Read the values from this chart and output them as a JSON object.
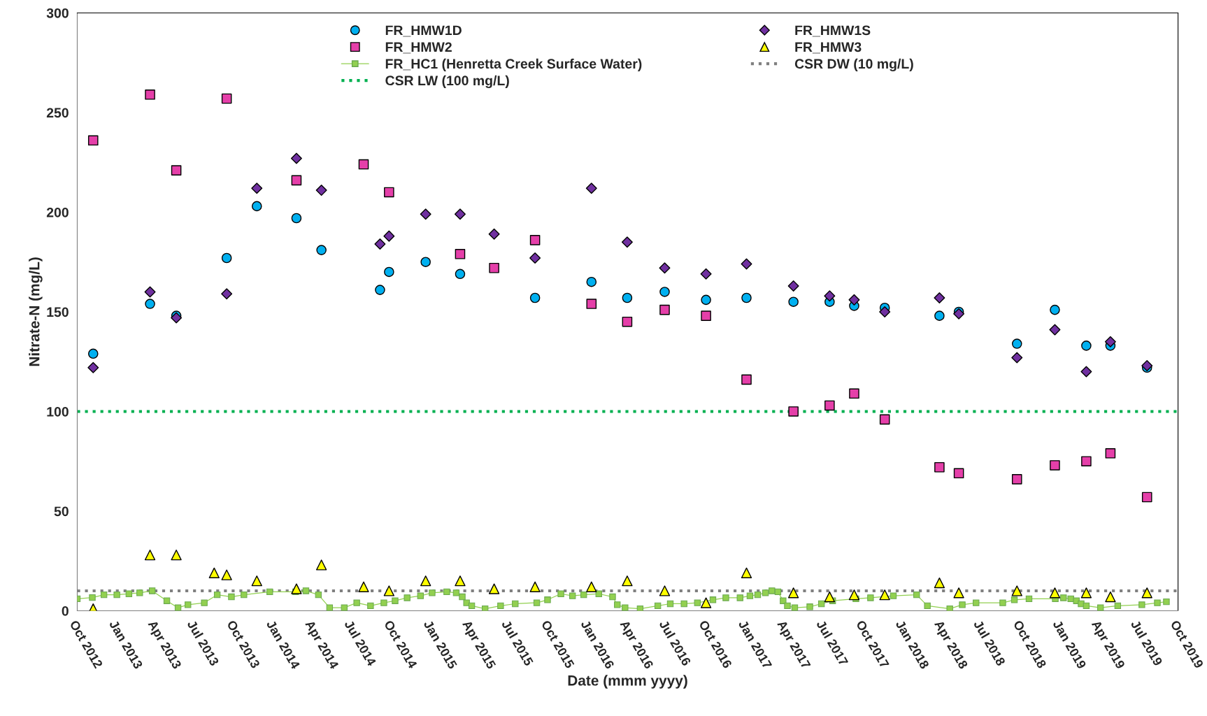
{
  "chart_data": {
    "type": "scatter",
    "xlabel": "Date (mmm yyyy)",
    "ylabel": "Nitrate-N (mg/L)",
    "xlim": [
      "2012-10-01",
      "2019-10-01"
    ],
    "xticks": [
      {
        "value": "2012-10-01",
        "label": "Oct 2012"
      },
      {
        "value": "2013-01-01",
        "label": "Jan 2013"
      },
      {
        "value": "2013-04-01",
        "label": "Apr 2013"
      },
      {
        "value": "2013-07-01",
        "label": "Jul 2013"
      },
      {
        "value": "2013-10-01",
        "label": "Oct 2013"
      },
      {
        "value": "2014-01-01",
        "label": "Jan 2014"
      },
      {
        "value": "2014-04-01",
        "label": "Apr 2014"
      },
      {
        "value": "2014-07-01",
        "label": "Jul 2014"
      },
      {
        "value": "2014-10-01",
        "label": "Oct 2014"
      },
      {
        "value": "2015-01-01",
        "label": "Jan 2015"
      },
      {
        "value": "2015-04-01",
        "label": "Apr 2015"
      },
      {
        "value": "2015-07-01",
        "label": "Jul 2015"
      },
      {
        "value": "2015-10-01",
        "label": "Oct 2015"
      },
      {
        "value": "2016-01-01",
        "label": "Jan 2016"
      },
      {
        "value": "2016-04-01",
        "label": "Apr 2016"
      },
      {
        "value": "2016-07-01",
        "label": "Jul 2016"
      },
      {
        "value": "2016-10-01",
        "label": "Oct 2016"
      },
      {
        "value": "2017-01-01",
        "label": "Jan 2017"
      },
      {
        "value": "2017-04-01",
        "label": "Apr 2017"
      },
      {
        "value": "2017-07-01",
        "label": "Jul 2017"
      },
      {
        "value": "2017-10-01",
        "label": "Oct 2017"
      },
      {
        "value": "2018-01-01",
        "label": "Jan 2018"
      },
      {
        "value": "2018-04-01",
        "label": "Apr 2018"
      },
      {
        "value": "2018-07-01",
        "label": "Jul 2018"
      },
      {
        "value": "2018-10-01",
        "label": "Oct 2018"
      },
      {
        "value": "2019-01-01",
        "label": "Jan 2019"
      },
      {
        "value": "2019-04-01",
        "label": "Apr 2019"
      },
      {
        "value": "2019-07-01",
        "label": "Jul 2019"
      },
      {
        "value": "2019-10-01",
        "label": "Oct 2019"
      }
    ],
    "ylim": [
      0,
      300
    ],
    "yticks": [
      0,
      50,
      100,
      150,
      200,
      250,
      300
    ],
    "grid": false,
    "legend": "top",
    "series": [
      {
        "name": "FR_HMW1D",
        "marker": "circle",
        "color": "#00b0f0",
        "x": [
          "2012-11-07",
          "2013-03-19",
          "2013-05-19",
          "2013-09-13",
          "2013-11-22",
          "2014-02-22",
          "2014-04-21",
          "2014-09-04",
          "2014-09-25",
          "2014-12-19",
          "2015-03-09",
          "2015-08-30",
          "2016-01-08",
          "2016-03-31",
          "2016-06-26",
          "2016-09-30",
          "2017-01-02",
          "2017-04-21",
          "2017-07-14",
          "2017-09-09",
          "2017-11-19",
          "2018-03-26",
          "2018-05-10",
          "2018-09-22",
          "2018-12-19",
          "2019-03-02",
          "2019-04-27",
          "2019-07-21"
        ],
        "values": [
          129,
          154,
          148,
          177,
          203,
          197,
          181,
          161,
          170,
          175,
          169,
          157,
          165,
          157,
          160,
          156,
          157,
          155,
          155,
          153,
          152,
          148,
          150,
          134,
          151,
          133,
          133,
          122
        ]
      },
      {
        "name": "FR_HMW1S",
        "marker": "diamond",
        "color": "#7030a0",
        "x": [
          "2012-11-07",
          "2013-03-19",
          "2013-05-19",
          "2013-09-13",
          "2013-11-22",
          "2014-02-22",
          "2014-04-21",
          "2014-09-04",
          "2014-09-25",
          "2014-12-19",
          "2015-03-09",
          "2015-05-27",
          "2015-08-30",
          "2016-01-08",
          "2016-03-31",
          "2016-06-26",
          "2016-09-30",
          "2017-01-02",
          "2017-04-21",
          "2017-07-14",
          "2017-09-09",
          "2017-11-19",
          "2018-03-26",
          "2018-05-10",
          "2018-09-22",
          "2018-12-19",
          "2019-03-02",
          "2019-04-27",
          "2019-07-21"
        ],
        "values": [
          122,
          160,
          147,
          159,
          212,
          227,
          211,
          184,
          188,
          199,
          199,
          189,
          177,
          212,
          185,
          172,
          169,
          174,
          163,
          158,
          156,
          150,
          157,
          149,
          127,
          141,
          120,
          135,
          123
        ]
      },
      {
        "name": "FR_HMW2",
        "marker": "square",
        "color": "#e53fa9",
        "x": [
          "2012-11-07",
          "2013-03-19",
          "2013-05-19",
          "2013-09-13",
          "2014-02-22",
          "2014-07-28",
          "2014-09-25",
          "2015-03-09",
          "2015-05-27",
          "2015-08-30",
          "2016-01-08",
          "2016-03-31",
          "2016-06-26",
          "2016-09-30",
          "2017-01-02",
          "2017-04-21",
          "2017-07-14",
          "2017-09-09",
          "2017-11-19",
          "2018-03-26",
          "2018-05-10",
          "2018-09-22",
          "2018-12-19",
          "2019-03-02",
          "2019-04-27",
          "2019-07-21"
        ],
        "values": [
          236,
          259,
          221,
          257,
          216,
          224,
          210,
          179,
          172,
          186,
          154,
          145,
          151,
          148,
          116,
          100,
          103,
          109,
          96,
          72,
          69,
          66,
          73,
          75,
          79,
          57
        ]
      },
      {
        "name": "FR_HMW3",
        "marker": "triangle",
        "color": "#ffff00",
        "x": [
          "2012-11-07",
          "2013-03-19",
          "2013-05-19",
          "2013-08-15",
          "2013-09-13",
          "2013-11-22",
          "2014-02-22",
          "2014-04-21",
          "2014-07-28",
          "2014-09-25",
          "2014-12-19",
          "2015-03-09",
          "2015-05-27",
          "2015-08-30",
          "2016-01-08",
          "2016-03-31",
          "2016-06-26",
          "2016-09-30",
          "2017-01-02",
          "2017-04-21",
          "2017-07-14",
          "2017-09-09",
          "2017-11-19",
          "2018-03-26",
          "2018-05-10",
          "2018-09-22",
          "2018-12-19",
          "2019-03-02",
          "2019-04-27",
          "2019-07-21"
        ],
        "values": [
          1,
          28,
          28,
          19,
          18,
          15,
          11,
          23,
          12,
          10,
          15,
          15,
          11,
          12,
          12,
          15,
          10,
          4,
          19,
          9,
          7,
          8,
          8,
          14,
          9,
          10,
          9,
          9,
          7,
          9
        ]
      },
      {
        "name": "FR_HC1 (Henretta Creek Surface Water)",
        "type": "line",
        "marker": "square",
        "line_style": "solid",
        "color": "#92d050",
        "x": [
          "2012-10-01",
          "2012-11-05",
          "2012-12-02",
          "2013-01-01",
          "2013-01-29",
          "2013-02-23",
          "2013-03-24",
          "2013-04-27",
          "2013-05-23",
          "2013-06-15",
          "2013-07-23",
          "2013-08-22",
          "2013-09-24",
          "2013-10-23",
          "2013-12-22",
          "2014-02-20",
          "2014-03-16",
          "2014-04-14",
          "2014-05-10",
          "2014-06-13",
          "2014-07-12",
          "2014-08-13",
          "2014-09-13",
          "2014-10-09",
          "2014-11-06",
          "2014-12-07",
          "2015-01-03",
          "2015-02-06",
          "2015-02-28",
          "2015-03-14",
          "2015-03-24",
          "2015-04-05",
          "2015-05-06",
          "2015-06-11",
          "2015-07-15",
          "2015-09-03",
          "2015-09-28",
          "2015-10-29",
          "2015-11-25",
          "2015-12-21",
          "2016-01-25",
          "2016-02-26",
          "2016-03-08",
          "2016-03-26",
          "2016-04-30",
          "2016-06-10",
          "2016-07-09",
          "2016-08-10",
          "2016-09-10",
          "2016-10-16",
          "2016-11-15",
          "2016-12-18",
          "2017-01-10",
          "2017-01-28",
          "2017-02-15",
          "2017-03-02",
          "2017-03-16",
          "2017-03-28",
          "2017-04-07",
          "2017-04-24",
          "2017-05-29",
          "2017-06-25",
          "2017-07-21",
          "2017-09-13",
          "2017-10-17",
          "2017-12-09",
          "2018-02-01",
          "2018-02-26",
          "2018-04-19",
          "2018-05-18",
          "2018-06-19",
          "2018-08-20",
          "2018-09-16",
          "2018-10-20",
          "2018-12-20",
          "2019-01-08",
          "2019-01-25",
          "2019-02-07",
          "2019-02-18",
          "2019-03-02",
          "2019-04-04",
          "2019-05-14",
          "2019-07-09",
          "2019-08-14",
          "2019-09-04"
        ],
        "values": [
          6,
          6.6,
          8,
          8,
          8.5,
          9,
          10,
          5,
          1.5,
          3,
          4,
          8,
          7,
          8,
          9.5,
          9.5,
          10,
          8,
          1.5,
          1.5,
          4,
          2.5,
          4,
          5,
          6.5,
          7.5,
          9,
          9.5,
          9,
          7,
          4,
          2.5,
          1,
          2.5,
          3.5,
          4,
          5.5,
          8.5,
          7.5,
          8,
          8.5,
          7,
          3,
          1.5,
          1,
          2.5,
          3.5,
          3.5,
          4,
          5.5,
          6.5,
          6.5,
          7.5,
          8,
          9,
          10,
          9.5,
          5,
          2.5,
          1.5,
          2,
          3.5,
          5,
          6,
          6.5,
          7.5,
          8,
          2.5,
          1,
          3,
          4,
          4,
          5.5,
          6,
          6,
          6.5,
          6,
          5,
          3.5,
          2.5,
          1.5,
          2.5,
          3,
          4,
          4.5
        ]
      }
    ],
    "ref_lines": [
      {
        "axis": "y",
        "value": 10,
        "label": "CSR DW (10 mg/L)",
        "color": "#808080",
        "line_style": "dotted"
      },
      {
        "axis": "y",
        "value": 100,
        "label": "CSR LW (100 mg/L)",
        "color": "#00b050",
        "line_style": "dotted"
      }
    ]
  }
}
